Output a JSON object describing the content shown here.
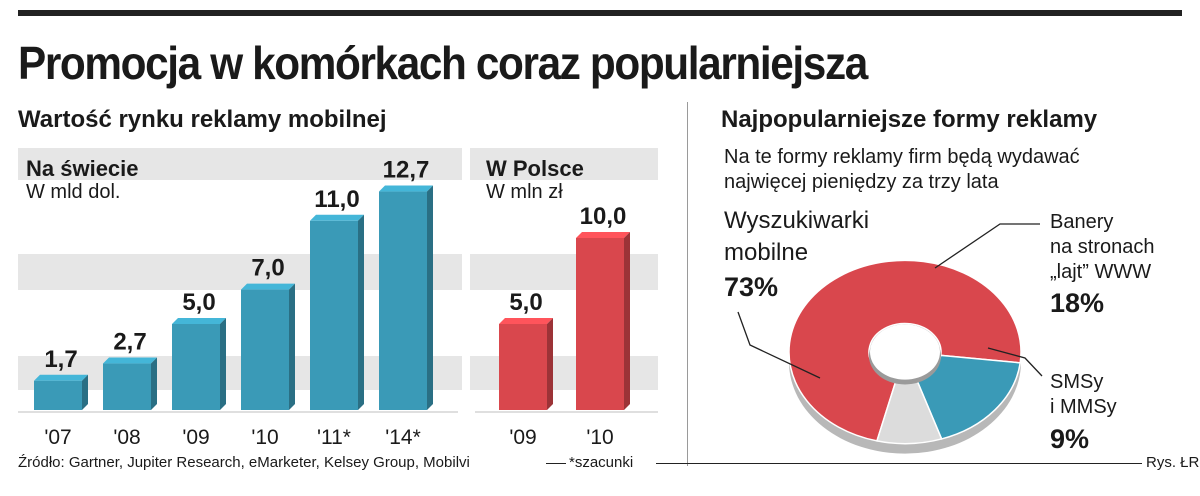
{
  "title": "Promocja w komórkach coraz popularniejsza",
  "left_heading": "Wartość rynku reklamy mobilnej",
  "right_heading": "Najpopularniejsze formy reklamy",
  "right_note_line1": "Na te formy reklamy firm będą wydawać",
  "right_note_line2": "najwięcej pieniędzy za trzy lata",
  "footer_source": "Źródło: Gartner, Jupiter Research, eMarketer, Kelsey Group, Mobilvi",
  "footer_note": "*szacunki",
  "footer_credit": "Rys. ŁR",
  "colors": {
    "blue": "#3a9ab7",
    "red": "#d9474d",
    "grey": "#dcdcdc",
    "band": "#e6e6e6"
  },
  "chart_data": [
    {
      "type": "bar",
      "title": "Na świecie",
      "subtitle": "W mld dol.",
      "categories": [
        "'07",
        "'08",
        "'09",
        "'10",
        "'11*",
        "'14*"
      ],
      "values": [
        1.7,
        2.7,
        5.0,
        7.0,
        11.0,
        12.7
      ],
      "value_labels": [
        "1,7",
        "2,7",
        "5,0",
        "7,0",
        "11,0",
        "12,7"
      ],
      "ylim": [
        0,
        13
      ]
    },
    {
      "type": "bar",
      "title": "W Polsce",
      "subtitle": "W mln zł",
      "categories": [
        "'09",
        "'10"
      ],
      "values": [
        5.0,
        10.0
      ],
      "value_labels": [
        "5,0",
        "10,0"
      ],
      "ylim": [
        0,
        13
      ]
    },
    {
      "type": "pie",
      "slices": [
        {
          "label_lines": [
            "Wyszukiwarki",
            "mobilne"
          ],
          "value": 73,
          "value_label": "73%"
        },
        {
          "label_lines": [
            "Banery",
            "na stronach",
            "„lajt” WWW"
          ],
          "value": 18,
          "value_label": "18%"
        },
        {
          "label_lines": [
            "SMSy",
            "i MMSy"
          ],
          "value": 9,
          "value_label": "9%"
        }
      ]
    }
  ]
}
